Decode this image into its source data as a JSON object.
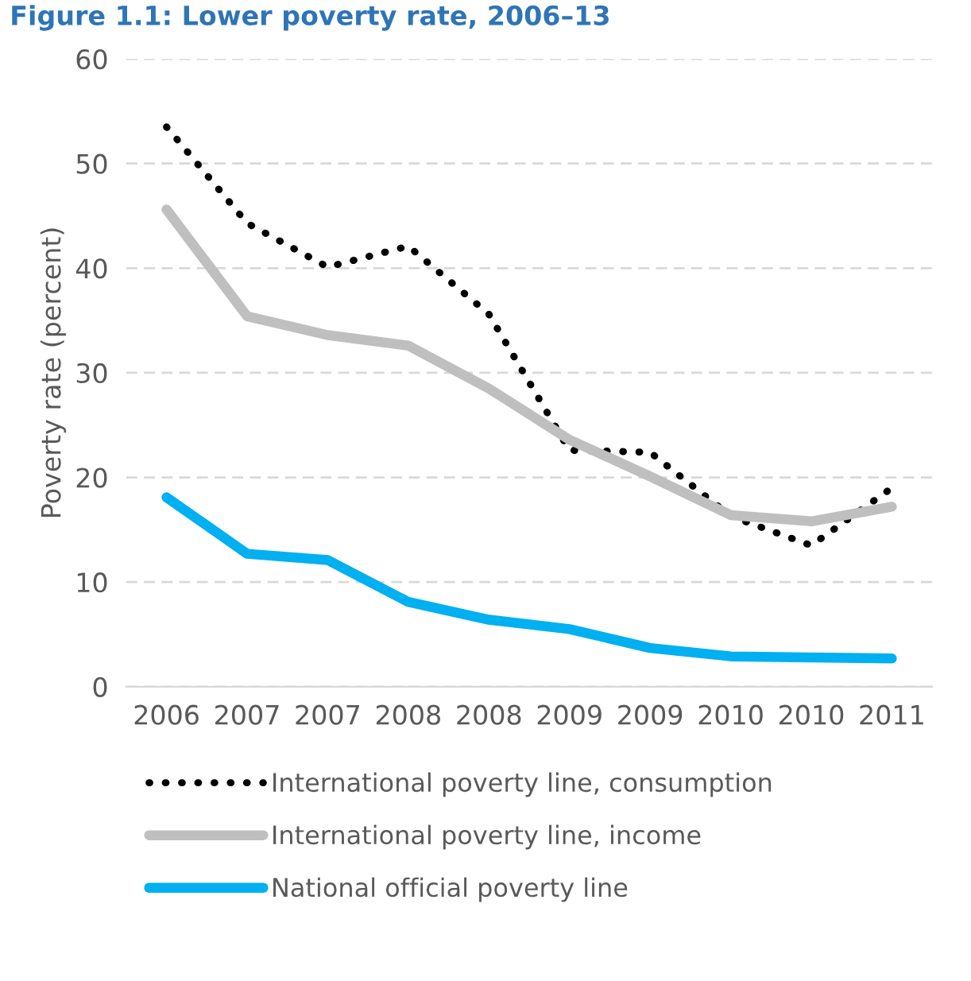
{
  "chart_data": {
    "type": "line",
    "title": "Figure 1.1: Lower poverty rate, 2006–13",
    "ylabel": "Poverty rate (percent)",
    "categories": [
      "2006",
      "2007",
      "2007",
      "2008",
      "2008",
      "2009",
      "2009",
      "2010",
      "2010",
      "2011"
    ],
    "series": [
      {
        "name": "International poverty line, consumption",
        "color": "#000000",
        "line_style": "dotted",
        "values": [
          53.5,
          44.3,
          40.1,
          42.1,
          35.6,
          22.6,
          22.4,
          16.3,
          13.5,
          19.0
        ]
      },
      {
        "name": "International poverty line, income",
        "color": "#bfbfbf",
        "line_style": "solid",
        "values": [
          45.6,
          35.4,
          33.6,
          32.6,
          28.5,
          23.6,
          20.1,
          16.4,
          15.8,
          17.2
        ]
      },
      {
        "name": "National official poverty line",
        "color": "#00b0f0",
        "line_style": "solid",
        "values": [
          18.1,
          12.7,
          12.1,
          8.1,
          6.4,
          5.5,
          3.7,
          2.9,
          2.8,
          2.7
        ]
      }
    ],
    "ylim": [
      0,
      60
    ],
    "yticks": [
      0,
      10,
      20,
      30,
      40,
      50,
      60
    ],
    "grid": "y",
    "legend": "bottom"
  }
}
